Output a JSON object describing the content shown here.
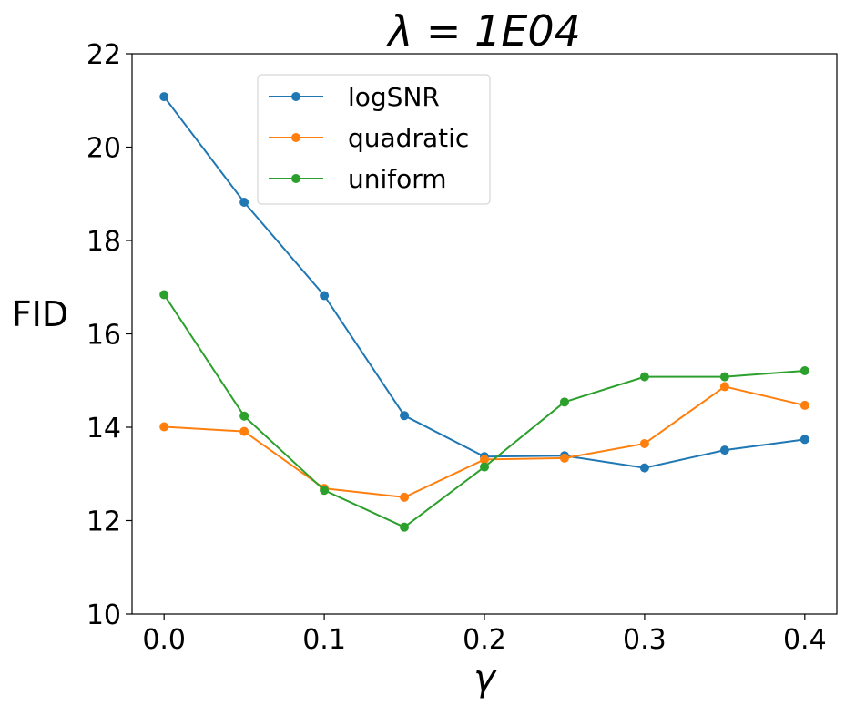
{
  "chart_data": {
    "type": "line",
    "title": "λ = 1E04",
    "xlabel": "γ",
    "ylabel": "FID",
    "x": [
      0.0,
      0.05,
      0.1,
      0.15,
      0.2,
      0.25,
      0.3,
      0.35,
      0.4
    ],
    "xticks": [
      0.0,
      0.1,
      0.2,
      0.3,
      0.4
    ],
    "xtick_labels": [
      "0.0",
      "0.1",
      "0.2",
      "0.3",
      "0.4"
    ],
    "yticks": [
      10,
      12,
      14,
      16,
      18,
      20,
      22
    ],
    "ytick_labels": [
      "10",
      "12",
      "14",
      "16",
      "18",
      "20",
      "22"
    ],
    "xlim": [
      -0.02,
      0.42
    ],
    "ylim": [
      10,
      22
    ],
    "grid": false,
    "legend_position": "upper-center-left",
    "series": [
      {
        "name": "logSNR",
        "color": "#1f77b4",
        "values": [
          21.08,
          18.82,
          16.82,
          14.25,
          13.37,
          13.39,
          13.13,
          13.51,
          13.74
        ]
      },
      {
        "name": "quadratic",
        "color": "#ff7f0e",
        "values": [
          14.01,
          13.91,
          12.69,
          12.5,
          13.31,
          13.34,
          13.65,
          14.87,
          14.47
        ]
      },
      {
        "name": "uniform",
        "color": "#2ca02c",
        "values": [
          16.84,
          14.24,
          12.65,
          11.86,
          13.15,
          14.54,
          15.08,
          15.08,
          15.21
        ]
      }
    ]
  }
}
